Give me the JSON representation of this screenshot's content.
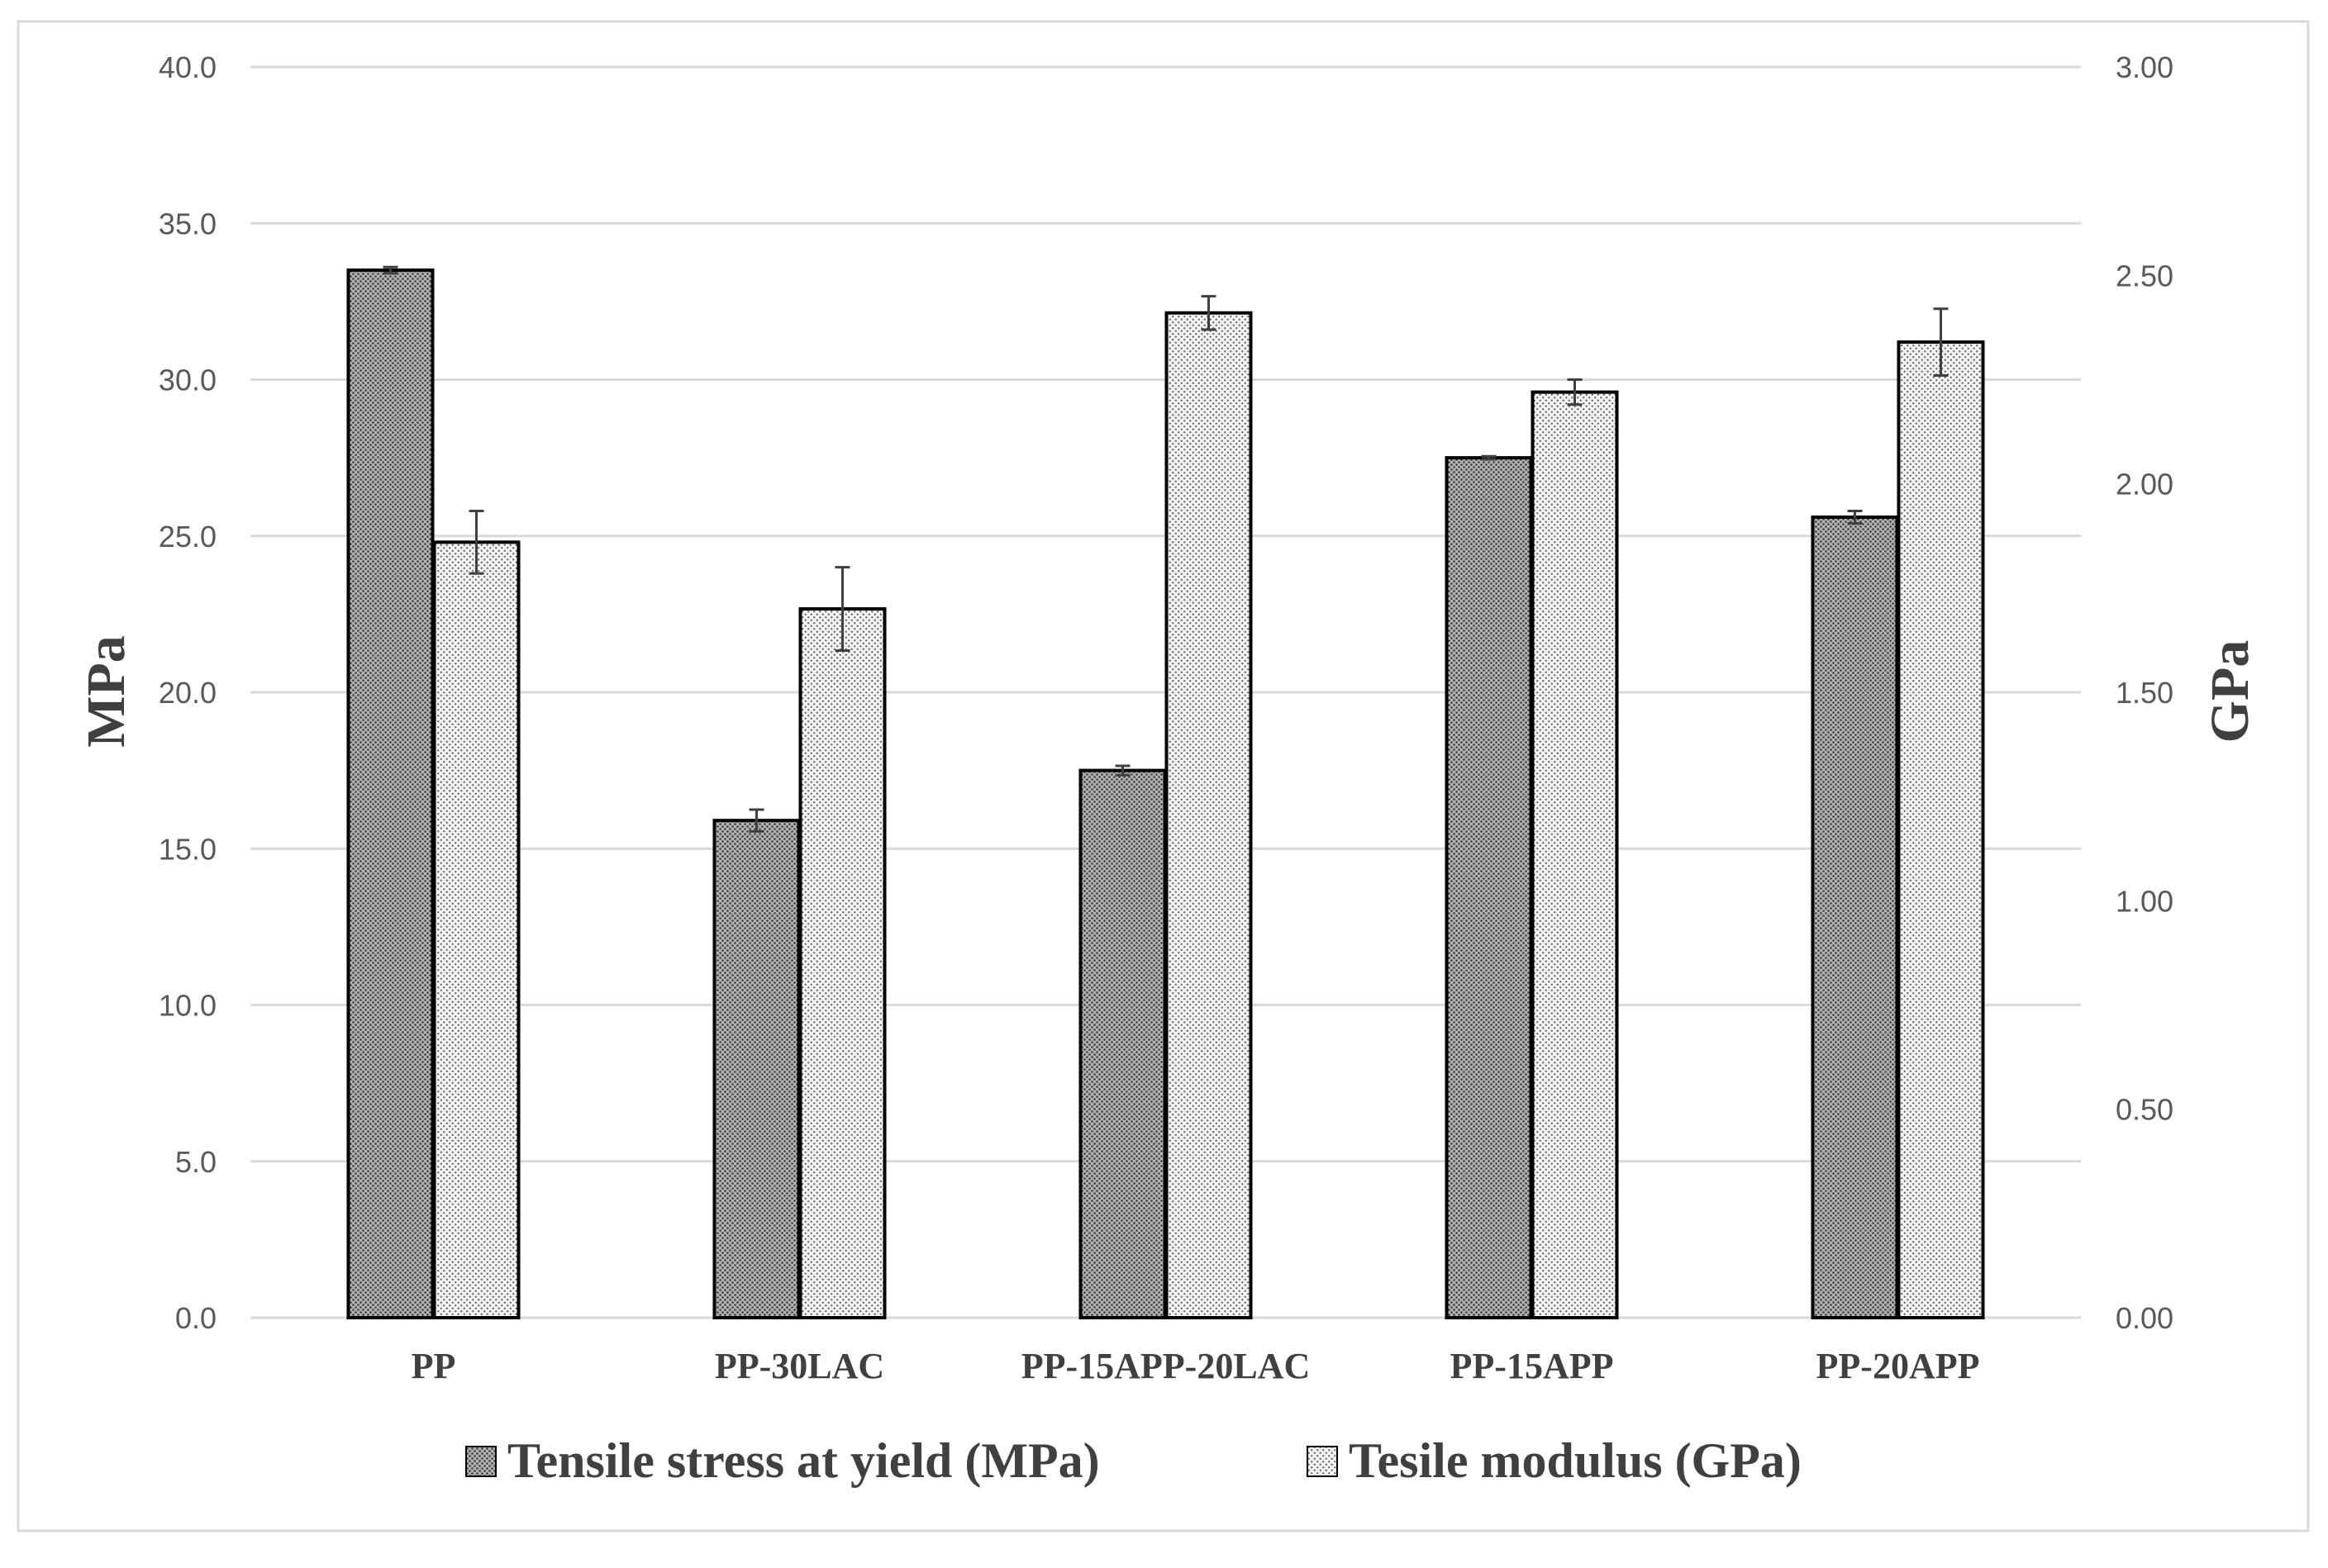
{
  "chart_data": {
    "type": "bar",
    "title": "",
    "categories": [
      "PP",
      "PP-30LAC",
      "PP-15APP-20LAC",
      "PP-15APP",
      "PP-20APP"
    ],
    "ylabel": "MPa",
    "y2label": "GPa",
    "ylim": [
      0,
      40
    ],
    "y2lim": [
      0,
      3
    ],
    "yticks": [
      "0.0",
      "5.0",
      "10.0",
      "15.0",
      "20.0",
      "25.0",
      "30.0",
      "35.0",
      "40.0"
    ],
    "y2ticks": [
      "0.00",
      "0.50",
      "1.00",
      "1.50",
      "2.00",
      "2.50",
      "3.00"
    ],
    "grid": true,
    "legend_position": "bottom",
    "series": [
      {
        "name": "Tensile stress at yield (MPa)",
        "axis": "left",
        "pattern": "dark-dots",
        "values": [
          33.5,
          15.9,
          17.5,
          27.5,
          25.6
        ],
        "errors": [
          0.1,
          0.35,
          0.15,
          0.05,
          0.2
        ]
      },
      {
        "name": "Tesile modulus (GPa)",
        "axis": "right",
        "pattern": "light-dots",
        "values": [
          1.86,
          1.7,
          2.41,
          2.22,
          2.34
        ],
        "errors": [
          0.075,
          0.1,
          0.04,
          0.03,
          0.08
        ]
      }
    ],
    "colors": {
      "grid": "#d9d9d9",
      "tick_text": "#595959",
      "label_text": "#404040",
      "bar_outline": "#000000",
      "error_bar": "#404040",
      "border": "#d9d9d9"
    }
  }
}
